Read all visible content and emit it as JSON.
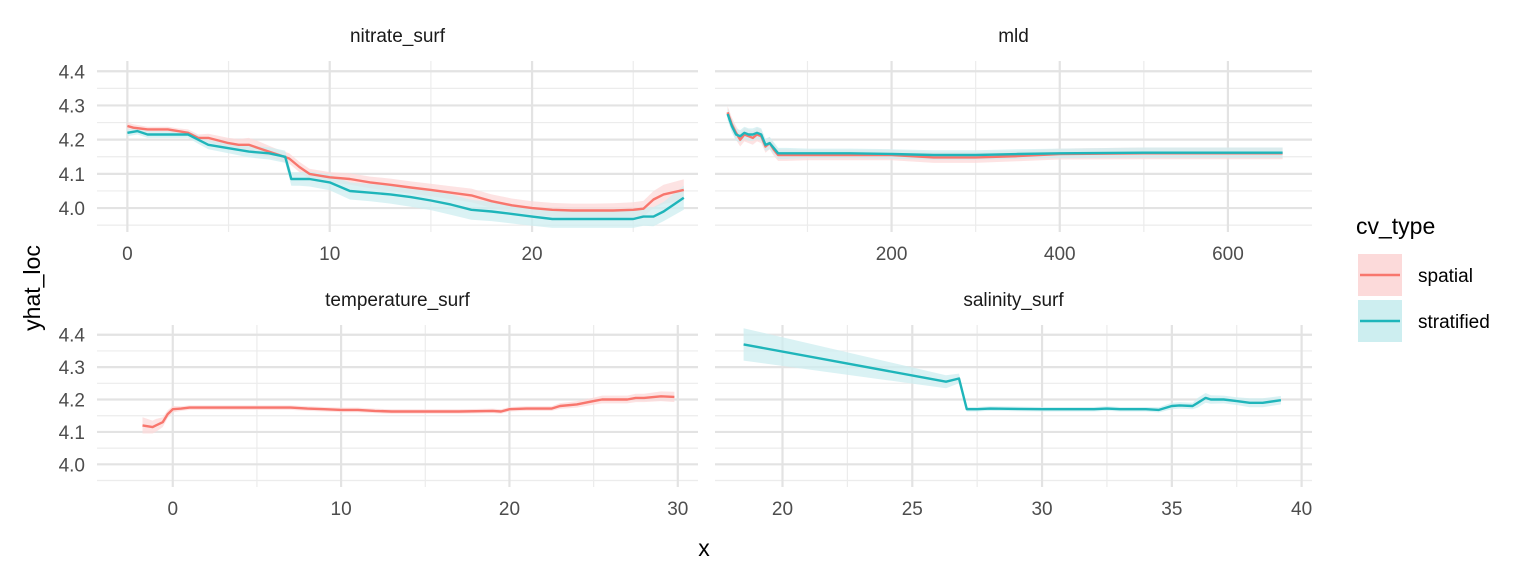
{
  "chart_data": {
    "type": "line",
    "xlabel": "x",
    "ylabel": "yhat_loc",
    "legend": {
      "title": "cv_type",
      "placement": "right",
      "entries": [
        {
          "name": "spatial",
          "color": "#F8766D",
          "fill": "#FCDADA"
        },
        {
          "name": "stratified",
          "color": "#1FB5BA",
          "fill": "#CDEEF0"
        }
      ]
    },
    "grid": true,
    "panels": [
      {
        "title": "nitrate_surf",
        "xlim": [
          -1.5,
          28.2
        ],
        "ylim": [
          3.93,
          4.43
        ],
        "xticks": [
          0,
          10,
          20
        ],
        "yticks": [
          4.0,
          4.1,
          4.2,
          4.3,
          4.4
        ],
        "yminor": [
          3.95,
          4.05,
          4.15,
          4.25,
          4.35
        ],
        "xminor": [
          5,
          15,
          25
        ],
        "series": [
          {
            "name": "spatial",
            "x": [
              0,
              0.3,
              1,
              2,
              2.5,
              3,
              3.5,
              4,
              5,
              5.5,
              6,
              6.5,
              7,
              7.5,
              8,
              8.5,
              9,
              10,
              11,
              12,
              13,
              14,
              15,
              16,
              17,
              18,
              19,
              20,
              21,
              22,
              23,
              24,
              25,
              25.5,
              26,
              26.5,
              27.5
            ],
            "y": [
              4.24,
              4.235,
              4.23,
              4.23,
              4.225,
              4.22,
              4.205,
              4.205,
              4.19,
              4.185,
              4.185,
              4.175,
              4.165,
              4.155,
              4.145,
              4.12,
              4.1,
              4.09,
              4.085,
              4.075,
              4.068,
              4.06,
              4.053,
              4.045,
              4.037,
              4.02,
              4.008,
              4.0,
              3.995,
              3.993,
              3.993,
              3.993,
              3.995,
              3.998,
              4.025,
              4.04,
              4.053
            ],
            "lower": [
              4.23,
              4.225,
              4.222,
              4.222,
              4.217,
              4.21,
              4.195,
              4.193,
              4.175,
              4.168,
              4.165,
              4.155,
              4.148,
              4.14,
              4.13,
              4.105,
              4.085,
              4.075,
              4.068,
              4.058,
              4.05,
              4.042,
              4.035,
              4.026,
              4.017,
              4.0,
              3.988,
              3.98,
              3.975,
              3.973,
              3.973,
              3.972,
              3.973,
              3.975,
              4.0,
              4.012,
              4.022
            ],
            "upper": [
              4.25,
              4.245,
              4.238,
              4.238,
              4.233,
              4.23,
              4.215,
              4.217,
              4.205,
              4.202,
              4.205,
              4.195,
              4.182,
              4.17,
              4.16,
              4.135,
              4.115,
              4.105,
              4.102,
              4.092,
              4.086,
              4.078,
              4.071,
              4.064,
              4.057,
              4.04,
              4.028,
              4.02,
              4.015,
              4.013,
              4.013,
              4.014,
              4.017,
              4.021,
              4.05,
              4.068,
              4.084
            ]
          },
          {
            "name": "stratified",
            "x": [
              0,
              0.5,
              1,
              2,
              3,
              3.5,
              4,
              5,
              6,
              7,
              7.8,
              8.1,
              8.5,
              9,
              10,
              11,
              12,
              13,
              14,
              15,
              16,
              17,
              18,
              19,
              20,
              21,
              22,
              23,
              24,
              25,
              25.5,
              26,
              26.5,
              27.5
            ],
            "y": [
              4.22,
              4.225,
              4.215,
              4.215,
              4.215,
              4.2,
              4.185,
              4.175,
              4.165,
              4.16,
              4.15,
              4.085,
              4.085,
              4.085,
              4.075,
              4.05,
              4.045,
              4.04,
              4.032,
              4.022,
              4.01,
              3.995,
              3.99,
              3.983,
              3.975,
              3.968,
              3.968,
              3.968,
              3.968,
              3.968,
              3.975,
              3.975,
              3.99,
              4.03
            ],
            "lower": [
              4.21,
              4.215,
              4.205,
              4.205,
              4.205,
              4.188,
              4.172,
              4.16,
              4.148,
              4.142,
              4.132,
              4.065,
              4.065,
              4.063,
              4.052,
              4.025,
              4.02,
              4.013,
              4.004,
              3.994,
              3.98,
              3.966,
              3.962,
              3.955,
              3.948,
              3.942,
              3.942,
              3.942,
              3.942,
              3.942,
              3.948,
              3.947,
              3.962,
              3.995
            ],
            "upper": [
              4.23,
              4.235,
              4.225,
              4.225,
              4.225,
              4.212,
              4.198,
              4.19,
              4.182,
              4.178,
              4.168,
              4.105,
              4.105,
              4.107,
              4.098,
              4.075,
              4.07,
              4.067,
              4.06,
              4.05,
              4.04,
              4.024,
              4.018,
              4.011,
              4.002,
              3.994,
              3.994,
              3.994,
              3.994,
              3.994,
              4.002,
              4.003,
              4.018,
              4.065
            ]
          }
        ]
      },
      {
        "title": "mld",
        "xlim": [
          -10,
          700
        ],
        "ylim": [
          3.93,
          4.43
        ],
        "xticks": [
          200,
          400,
          600
        ],
        "yticks": [
          4.0,
          4.1,
          4.2,
          4.3,
          4.4
        ],
        "yminor": [
          3.95,
          4.05,
          4.15,
          4.25,
          4.35
        ],
        "xminor": [
          100,
          300,
          500
        ],
        "series": [
          {
            "name": "spatial",
            "x": [
              5,
              10,
              15,
              20,
              25,
              30,
              35,
              40,
              45,
              50,
              55,
              60,
              65,
              70,
              75,
              100,
              150,
              200,
              250,
              300,
              350,
              400,
              500,
              600,
              665
            ],
            "y": [
              4.28,
              4.245,
              4.22,
              4.2,
              4.215,
              4.21,
              4.205,
              4.215,
              4.21,
              4.18,
              4.19,
              4.17,
              4.155,
              4.155,
              4.155,
              4.155,
              4.155,
              4.155,
              4.148,
              4.148,
              4.152,
              4.158,
              4.16,
              4.16,
              4.16
            ],
            "lower": [
              4.262,
              4.225,
              4.2,
              4.18,
              4.195,
              4.19,
              4.185,
              4.195,
              4.19,
              4.162,
              4.172,
              4.152,
              4.138,
              4.138,
              4.138,
              4.14,
              4.14,
              4.14,
              4.132,
              4.132,
              4.137,
              4.142,
              4.143,
              4.143,
              4.143
            ],
            "upper": [
              4.298,
              4.265,
              4.24,
              4.22,
              4.235,
              4.23,
              4.225,
              4.235,
              4.23,
              4.198,
              4.208,
              4.188,
              4.172,
              4.172,
              4.172,
              4.17,
              4.17,
              4.17,
              4.164,
              4.164,
              4.167,
              4.174,
              4.177,
              4.177,
              4.177
            ]
          },
          {
            "name": "stratified",
            "x": [
              5,
              10,
              15,
              20,
              25,
              30,
              35,
              40,
              45,
              50,
              55,
              60,
              65,
              70,
              75,
              100,
              150,
              200,
              250,
              300,
              350,
              400,
              500,
              600,
              665
            ],
            "y": [
              4.275,
              4.24,
              4.215,
              4.21,
              4.22,
              4.215,
              4.215,
              4.22,
              4.215,
              4.185,
              4.19,
              4.175,
              4.16,
              4.16,
              4.16,
              4.16,
              4.16,
              4.158,
              4.155,
              4.155,
              4.158,
              4.16,
              4.162,
              4.162,
              4.162
            ],
            "lower": [
              4.257,
              4.222,
              4.197,
              4.192,
              4.202,
              4.197,
              4.197,
              4.202,
              4.197,
              4.167,
              4.172,
              4.158,
              4.144,
              4.144,
              4.144,
              4.146,
              4.146,
              4.144,
              4.141,
              4.141,
              4.144,
              4.146,
              4.147,
              4.147,
              4.147
            ],
            "upper": [
              4.293,
              4.258,
              4.233,
              4.228,
              4.238,
              4.233,
              4.233,
              4.238,
              4.233,
              4.203,
              4.208,
              4.192,
              4.176,
              4.176,
              4.176,
              4.174,
              4.174,
              4.172,
              4.169,
              4.169,
              4.172,
              4.174,
              4.177,
              4.177,
              4.177
            ]
          }
        ]
      },
      {
        "title": "temperature_surf",
        "xlim": [
          -4.5,
          31.2
        ],
        "ylim": [
          3.93,
          4.43
        ],
        "xticks": [
          0,
          10,
          20,
          30
        ],
        "yticks": [
          4.0,
          4.1,
          4.2,
          4.3,
          4.4
        ],
        "yminor": [
          3.95,
          4.05,
          4.15,
          4.25,
          4.35
        ],
        "xminor": [
          5,
          15,
          25
        ],
        "series": [
          {
            "name": "spatial",
            "x": [
              -1.8,
              -1.2,
              -1.0,
              -0.6,
              -0.3,
              0,
              0.5,
              1,
              2,
              4,
              6,
              7,
              8,
              9,
              10,
              11,
              12,
              13,
              15,
              17,
              19,
              19.5,
              20,
              21,
              22,
              22.5,
              23,
              24,
              25,
              25.5,
              26,
              27,
              27.5,
              28,
              29,
              29.8
            ],
            "y": [
              4.12,
              4.115,
              4.12,
              4.13,
              4.155,
              4.17,
              4.172,
              4.175,
              4.175,
              4.175,
              4.175,
              4.175,
              4.172,
              4.17,
              4.168,
              4.168,
              4.165,
              4.163,
              4.163,
              4.163,
              4.165,
              4.163,
              4.17,
              4.172,
              4.172,
              4.172,
              4.18,
              4.185,
              4.195,
              4.2,
              4.2,
              4.2,
              4.205,
              4.205,
              4.21,
              4.208
            ],
            "lower": [
              4.095,
              4.095,
              4.1,
              4.115,
              4.143,
              4.16,
              4.165,
              4.168,
              4.168,
              4.168,
              4.168,
              4.168,
              4.165,
              4.163,
              4.161,
              4.161,
              4.158,
              4.156,
              4.156,
              4.156,
              4.158,
              4.156,
              4.163,
              4.165,
              4.165,
              4.165,
              4.171,
              4.175,
              4.184,
              4.188,
              4.188,
              4.188,
              4.192,
              4.192,
              4.195,
              4.192
            ],
            "upper": [
              4.145,
              4.135,
              4.14,
              4.145,
              4.167,
              4.18,
              4.179,
              4.182,
              4.182,
              4.182,
              4.182,
              4.182,
              4.179,
              4.177,
              4.175,
              4.175,
              4.172,
              4.17,
              4.17,
              4.17,
              4.172,
              4.17,
              4.177,
              4.179,
              4.179,
              4.179,
              4.189,
              4.195,
              4.206,
              4.212,
              4.212,
              4.212,
              4.218,
              4.218,
              4.225,
              4.224
            ]
          }
        ]
      },
      {
        "title": "salinity_surf",
        "xlim": [
          17.4,
          40.4
        ],
        "ylim": [
          3.93,
          4.43
        ],
        "xticks": [
          20,
          25,
          30,
          35,
          40
        ],
        "yticks": [
          4.0,
          4.1,
          4.2,
          4.3,
          4.4
        ],
        "yminor": [
          3.95,
          4.05,
          4.15,
          4.25,
          4.35
        ],
        "xminor": [
          22.5,
          27.5,
          32.5,
          37.5
        ],
        "series": [
          {
            "name": "stratified",
            "x": [
              18.5,
              26.3,
              26.8,
              27.1,
              27.5,
              28,
              30,
              32,
              32.5,
              33,
              34,
              34.5,
              35,
              35.3,
              35.8,
              36,
              36.3,
              36.5,
              37,
              37.5,
              38,
              38.5,
              39.2
            ],
            "y": [
              4.37,
              4.255,
              4.265,
              4.17,
              4.17,
              4.172,
              4.17,
              4.17,
              4.172,
              4.17,
              4.17,
              4.168,
              4.18,
              4.182,
              4.18,
              4.19,
              4.205,
              4.2,
              4.2,
              4.195,
              4.19,
              4.19,
              4.198
            ],
            "lower": [
              4.32,
              4.235,
              4.25,
              4.163,
              4.163,
              4.165,
              4.163,
              4.163,
              4.165,
              4.163,
              4.163,
              4.16,
              4.17,
              4.172,
              4.17,
              4.175,
              4.19,
              4.187,
              4.188,
              4.183,
              4.176,
              4.176,
              4.185
            ],
            "upper": [
              4.42,
              4.275,
              4.28,
              4.177,
              4.177,
              4.179,
              4.177,
              4.177,
              4.179,
              4.177,
              4.177,
              4.176,
              4.19,
              4.192,
              4.19,
              4.205,
              4.22,
              4.213,
              4.212,
              4.207,
              4.204,
              4.204,
              4.211
            ]
          }
        ]
      }
    ]
  }
}
